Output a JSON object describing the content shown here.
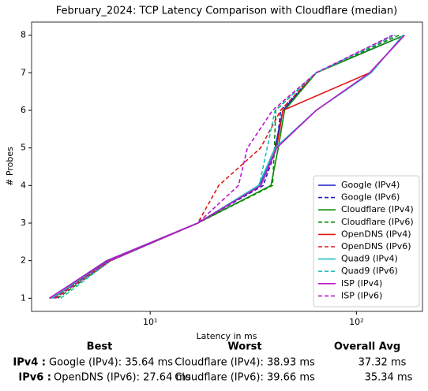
{
  "chart_data": {
    "type": "line",
    "title": "February_2024: TCP Latency Comparison with Cloudflare (median)",
    "x_label": "Latency in ms",
    "y_label": "# Probes",
    "log_x": true,
    "xlim": [
      2.66,
      209
    ],
    "xticks": [
      {
        "value": 10,
        "label": "10¹"
      },
      {
        "value": 100,
        "label": "10²"
      }
    ],
    "ylim": [
      0.65,
      8.35
    ],
    "yticks": [
      1,
      2,
      3,
      4,
      5,
      6,
      7,
      8
    ],
    "legend": "lower right",
    "series": [
      {
        "name": "Google (IPv4)",
        "color": "#1c1cc8",
        "linestyle": "solid",
        "x": [
          3.26,
          6.15,
          17.0,
          33.8,
          40.3,
          44.0,
          63.8,
          171
        ],
        "values": [
          1,
          2,
          3,
          4,
          5,
          6,
          7,
          8
        ]
      },
      {
        "name": "Google (IPv6)",
        "color": "#1c1cc8",
        "linestyle": "dashed",
        "x": [
          3.47,
          6.32,
          17.0,
          35.3,
          41.0,
          42.9,
          63.8,
          150
        ],
        "values": [
          1,
          2,
          3,
          4,
          5,
          6,
          7,
          8
        ]
      },
      {
        "name": "Cloudflare (IPv4)",
        "color": "#0a8a0a",
        "linestyle": "solid",
        "x": [
          3.35,
          6.27,
          17.0,
          38.5,
          41.8,
          44.8,
          63.8,
          171
        ],
        "values": [
          1,
          2,
          3,
          4,
          5,
          6,
          7,
          8
        ]
      },
      {
        "name": "Cloudflare (IPv6)",
        "color": "#0a8a0a",
        "linestyle": "dashed",
        "x": [
          3.56,
          6.43,
          17.0,
          39.2,
          40.0,
          40.6,
          63.8,
          161
        ],
        "values": [
          1,
          2,
          3,
          4,
          5,
          6,
          7,
          8
        ]
      },
      {
        "name": "OpenDNS (IPv4)",
        "color": "#e01818",
        "linestyle": "solid",
        "x": [
          3.29,
          6.21,
          17.0,
          34.4,
          41.0,
          44.0,
          116,
          171
        ],
        "values": [
          1,
          2,
          3,
          4,
          5,
          6,
          7,
          8
        ]
      },
      {
        "name": "OpenDNS (IPv6)",
        "color": "#e01818",
        "linestyle": "dashed",
        "x": [
          3.47,
          6.38,
          17.0,
          21.5,
          34.3,
          42.9,
          63.8,
          154
        ],
        "values": [
          1,
          2,
          3,
          4,
          5,
          6,
          7,
          8
        ]
      },
      {
        "name": "Quad9 (IPv4)",
        "color": "#20c0c0",
        "linestyle": "solid",
        "x": [
          3.32,
          6.21,
          17.0,
          33.5,
          40.3,
          63.8,
          118,
          168
        ],
        "values": [
          1,
          2,
          3,
          4,
          5,
          6,
          7,
          8
        ]
      },
      {
        "name": "Quad9 (IPv6)",
        "color": "#20c0c0",
        "linestyle": "dashed",
        "x": [
          3.69,
          6.43,
          17.0,
          33.8,
          36.9,
          40.3,
          63.8,
          154
        ],
        "values": [
          1,
          2,
          3,
          4,
          5,
          6,
          7,
          8
        ]
      },
      {
        "name": "ISP (IPv4)",
        "color": "#b818c8",
        "linestyle": "solid",
        "x": [
          3.24,
          6.21,
          17.0,
          34.4,
          41.0,
          63.8,
          116,
          171
        ],
        "values": [
          1,
          2,
          3,
          4,
          5,
          6,
          7,
          8
        ]
      },
      {
        "name": "ISP (IPv6)",
        "color": "#b818c8",
        "linestyle": "dashed",
        "x": [
          3.41,
          6.43,
          17.0,
          26.8,
          29.6,
          39.2,
          63.8,
          150
        ],
        "values": [
          1,
          2,
          3,
          4,
          5,
          6,
          7,
          8
        ]
      }
    ]
  },
  "table": {
    "headers": [
      "Best",
      "Worst",
      "Overall Avg"
    ],
    "rows": [
      {
        "label": "IPv4 :",
        "cells": [
          "Google (IPv4): 35.64 ms",
          "Cloudflare (IPv4): 38.93 ms",
          "37.32 ms"
        ]
      },
      {
        "label": "IPv6 :",
        "cells": [
          "OpenDNS (IPv6): 27.64 ms",
          "Cloudflare (IPv6): 39.66 ms",
          "35.34 ms"
        ]
      }
    ]
  }
}
